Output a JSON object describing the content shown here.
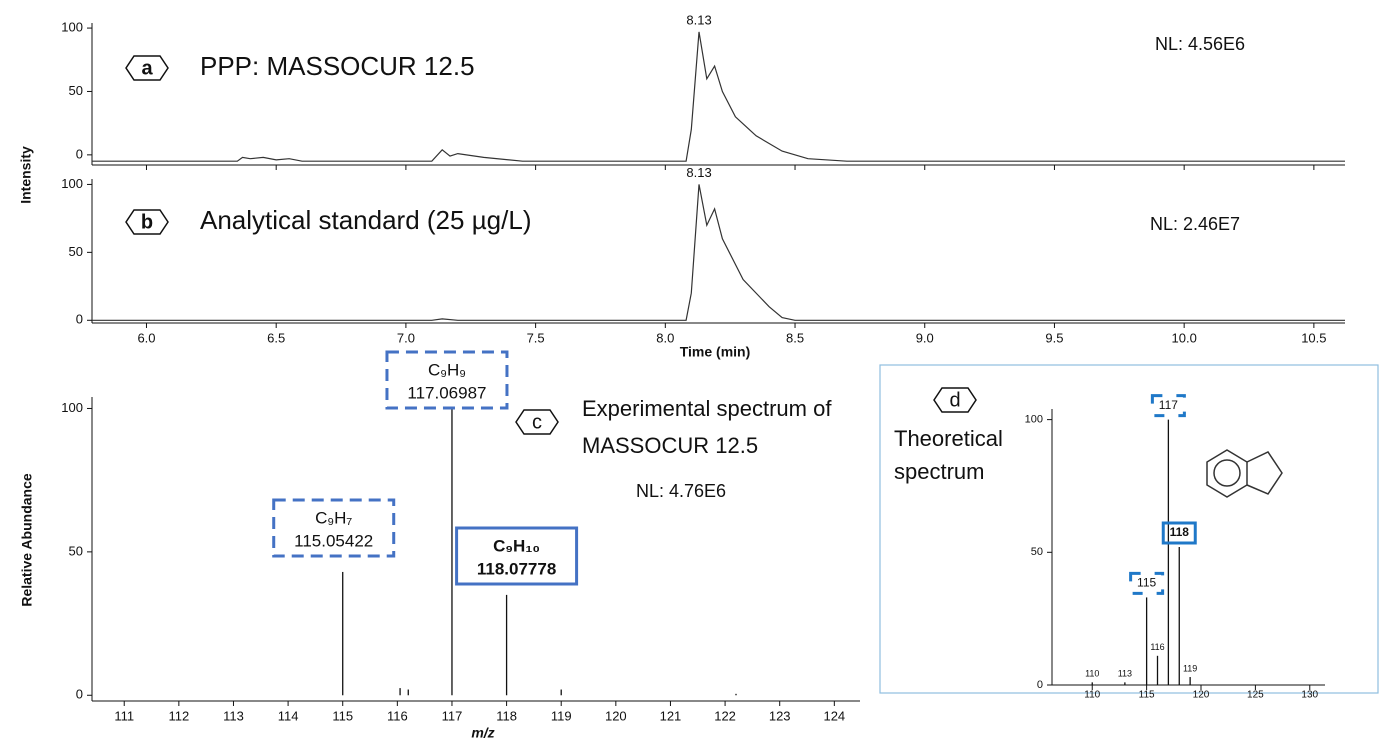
{
  "chart_data": [
    {
      "type": "line",
      "panel": "a",
      "title": "PPP: MASSOCUR 12.5",
      "nl": "NL: 4.56E6",
      "peak_label": "8.13",
      "y_label": "Intensity",
      "x": [
        5.79,
        6.35,
        6.37,
        6.4,
        6.45,
        6.5,
        6.55,
        6.6,
        7.1,
        7.14,
        7.17,
        7.2,
        7.3,
        7.45,
        8.08,
        8.1,
        8.13,
        8.16,
        8.19,
        8.22,
        8.27,
        8.35,
        8.45,
        8.55,
        8.7,
        10.62
      ],
      "values": [
        -5,
        -5,
        -2,
        -3,
        -2,
        -4,
        -3,
        -5,
        -5,
        4,
        -1,
        1,
        -2,
        -5,
        -5,
        20,
        97,
        60,
        70,
        50,
        30,
        15,
        3,
        -3,
        -5,
        -5
      ],
      "color": "#333333",
      "xlim": [
        5.79,
        10.62
      ],
      "ylim": [
        -8,
        104
      ],
      "yticks": [
        0,
        50,
        100
      ],
      "grid": false
    },
    {
      "type": "line",
      "panel": "b",
      "title": "Analytical standard (25 µg/L)",
      "nl": "NL: 2.46E7",
      "peak_label": "8.13",
      "x_label": "Time (min)",
      "x": [
        5.79,
        7.1,
        7.14,
        7.2,
        8.08,
        8.1,
        8.13,
        8.16,
        8.19,
        8.22,
        8.3,
        8.4,
        8.45,
        8.5,
        10.62
      ],
      "values": [
        0,
        0,
        1,
        0,
        0,
        20,
        100,
        70,
        82,
        60,
        30,
        10,
        2,
        0,
        0
      ],
      "color": "#333333",
      "xlim": [
        5.79,
        10.62
      ],
      "ylim": [
        -2,
        104
      ],
      "yticks": [
        0,
        50,
        100
      ],
      "xticks": [
        {
          "value": 6,
          "label": "6.0"
        },
        {
          "value": 6.5,
          "label": "6.5"
        },
        {
          "value": 7,
          "label": "7.0"
        },
        {
          "value": 7.5,
          "label": "7.5"
        },
        {
          "value": 8,
          "label": "8.0"
        },
        {
          "value": 8.5,
          "label": "8.5"
        },
        {
          "value": 9,
          "label": "9.0"
        },
        {
          "value": 9.5,
          "label": "9.5"
        },
        {
          "value": 10,
          "label": "10.0"
        },
        {
          "value": 10.5,
          "label": "10.5"
        }
      ],
      "grid": false
    },
    {
      "type": "stem",
      "panel": "c",
      "title": [
        "Experimental spectrum of",
        "MASSOCUR 12.5"
      ],
      "nl": "NL: 4.76E6",
      "x_label": "m/z",
      "y_label": "Relative Abundance",
      "x": [
        115.0,
        116.05,
        116.2,
        117.0,
        118.0,
        119.0,
        122.2
      ],
      "values": [
        43,
        2.5,
        2,
        100,
        35,
        2,
        0.5
      ],
      "color": "#111111",
      "xlim": [
        110.41,
        124.47
      ],
      "ylim": [
        -2,
        104
      ],
      "yticks": [
        0,
        50,
        100
      ],
      "xticks": [
        111,
        112,
        113,
        114,
        115,
        116,
        117,
        118,
        119,
        120,
        121,
        122,
        123,
        124
      ],
      "annotations": [
        {
          "formula": "C₉H₇",
          "mz": "115.05422",
          "style": "dashed"
        },
        {
          "formula": "C₉H₉",
          "mz": "117.06987",
          "style": "dashed"
        },
        {
          "formula": "C₉H₁₀",
          "mz": "118.07778",
          "style": "solid"
        }
      ],
      "box_color": "#4472c4",
      "grid": false
    },
    {
      "type": "stem",
      "panel": "d",
      "title": [
        "Theoretical",
        "spectrum"
      ],
      "x": [
        110,
        113,
        115,
        116,
        117,
        118,
        119
      ],
      "values": [
        1,
        1,
        33,
        11,
        100,
        52,
        3
      ],
      "peak_label_style": [
        "plain",
        "plain",
        "dashed",
        "plain",
        "dashed",
        "solid",
        "plain"
      ],
      "color": "#111111",
      "box_color": "#1f78c8",
      "xlim": [
        106.3,
        131.4
      ],
      "ylim": [
        0,
        104
      ],
      "yticks": [
        0,
        50,
        100
      ],
      "xticks": [
        110,
        115,
        120,
        125,
        130
      ],
      "grid": false
    }
  ]
}
